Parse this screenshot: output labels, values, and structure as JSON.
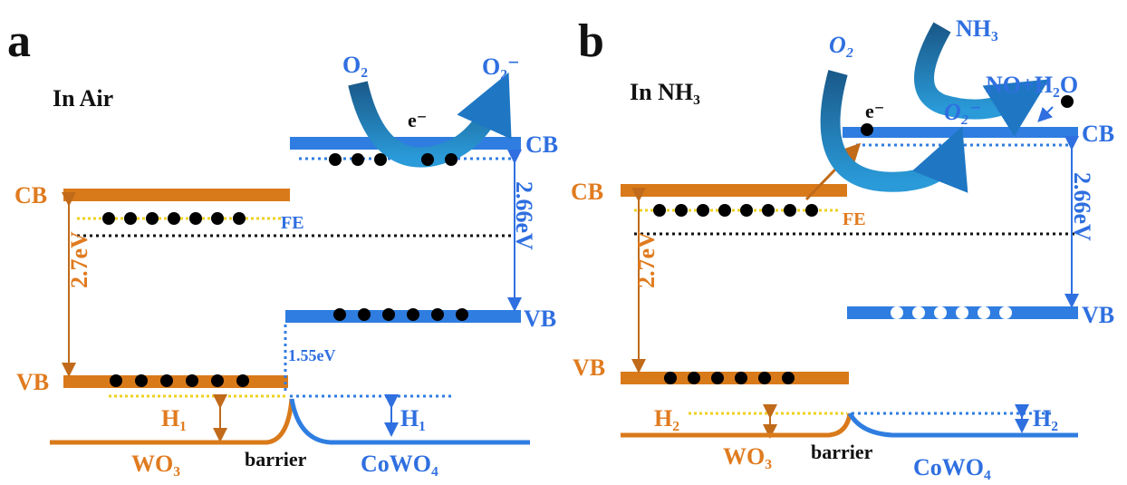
{
  "panels": [
    {
      "letter": "a",
      "condition": "In Air",
      "reactant": "O₂",
      "product": "O₂⁻",
      "electron": "e⁻",
      "cb_left": "CB",
      "cb_right": "CB",
      "fermi": "FE",
      "gap_left": "2.7eV",
      "gap_right": "2.66eV",
      "vb_left": "VB",
      "vb_right": "VB",
      "offset": "1.55eV",
      "h_left": "H₁",
      "h_right": "H₁",
      "material_left": "WO₃",
      "junction": "barrier",
      "material_right": "CoWO₄"
    },
    {
      "letter": "b",
      "condition": "In NH₃",
      "reactant": "O₂",
      "gas": "NH₃",
      "adsorbed": "O₂⁻",
      "product": "NO+H₂O",
      "electron": "e⁻",
      "cb_left": "CB",
      "cb_right": "CB",
      "fermi": "FE",
      "gap_left": "2.7eV",
      "gap_right": "2.66eV",
      "vb_left": "VB",
      "vb_right": "VB",
      "h_left": "H₂",
      "h_right": "H₂",
      "material_left": "WO₃",
      "junction": "barrier",
      "material_right": "CoWO₄"
    }
  ]
}
